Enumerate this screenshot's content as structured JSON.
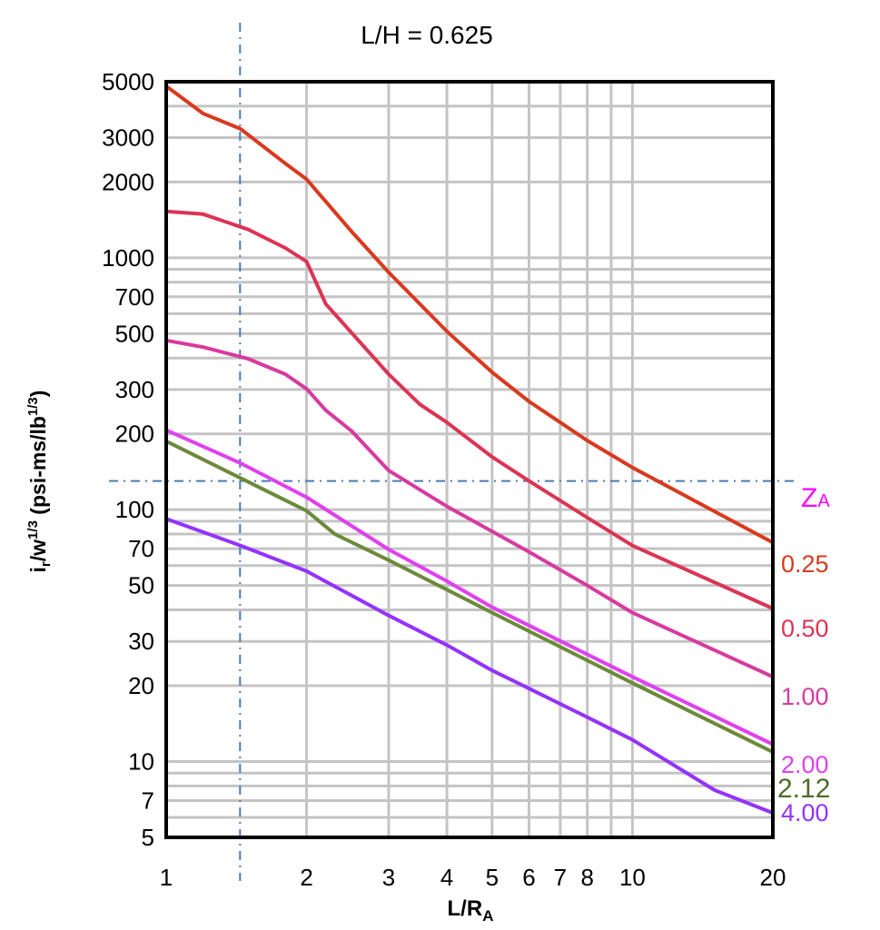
{
  "chart_data": {
    "type": "line",
    "title": "L/H = 0.625",
    "xlabel": "L/R",
    "xlabel_sub": "A",
    "ylabel": "i_r/w^1/3 (psi-ms/lb^1/3)",
    "x_scale": "log",
    "y_scale": "log",
    "xlim": [
      1,
      20
    ],
    "ylim": [
      5,
      5000
    ],
    "grid": true,
    "x_ticks": [
      1,
      2,
      3,
      4,
      5,
      6,
      7,
      8,
      10,
      20
    ],
    "y_ticks": [
      5000,
      3000,
      2000,
      1000,
      700,
      500,
      300,
      200,
      100,
      70,
      50,
      30,
      20,
      10,
      7,
      5
    ],
    "legend_title": "ZA",
    "legend_placement": "right, at line ends",
    "reference_lines": {
      "x": 1.44,
      "y": 130,
      "style": "dash-dot",
      "color": "#4a7ab8"
    },
    "series": [
      {
        "name": "0.25",
        "color": "#d83a1e",
        "x": [
          1,
          1.2,
          1.444,
          1.8,
          2,
          2.5,
          3,
          4,
          5,
          6,
          8,
          10,
          20
        ],
        "y": [
          4800,
          3740,
          3250,
          2370,
          2050,
          1270,
          875,
          510,
          351,
          269,
          188,
          147,
          74
        ]
      },
      {
        "name": "0.50",
        "color": "#dc3454",
        "x": [
          1,
          1.2,
          1.5,
          1.8,
          2,
          2.2,
          3,
          3.5,
          4,
          5,
          6,
          8,
          10,
          20
        ],
        "y": [
          1528,
          1490,
          1295,
          1094,
          966,
          655,
          345,
          262,
          222,
          162,
          130,
          93,
          72,
          40.5
        ]
      },
      {
        "name": "1.00",
        "color": "#d83a9e",
        "x": [
          1,
          1.2,
          1.5,
          1.8,
          2,
          2.2,
          2.5,
          3,
          4,
          5,
          6,
          8,
          10,
          20
        ],
        "y": [
          470,
          442,
          397,
          345,
          302,
          248,
          205,
          143,
          103,
          82,
          68,
          50,
          39,
          21.7
        ]
      },
      {
        "name": "2.00",
        "color": "#e040f0",
        "x": [
          1,
          1.444,
          2,
          3,
          4,
          5,
          10,
          20
        ],
        "y": [
          207,
          153,
          112,
          69.5,
          52,
          41,
          21.7,
          11.7
        ]
      },
      {
        "name": "2.12",
        "color": "#6b8a3a",
        "label_color": "#4f6b2a",
        "x": [
          1,
          2,
          2.3,
          3,
          5,
          10,
          20
        ],
        "y": [
          187,
          99,
          80,
          63,
          39,
          20.5,
          10.9
        ]
      },
      {
        "name": "4.00",
        "color": "#9333ff",
        "x": [
          1,
          1.444,
          2,
          3,
          4,
          5,
          6,
          8,
          10,
          15,
          20
        ],
        "y": [
          92,
          72,
          57,
          38,
          29,
          23,
          19.5,
          15,
          12.2,
          7.7,
          6.25
        ]
      }
    ]
  }
}
